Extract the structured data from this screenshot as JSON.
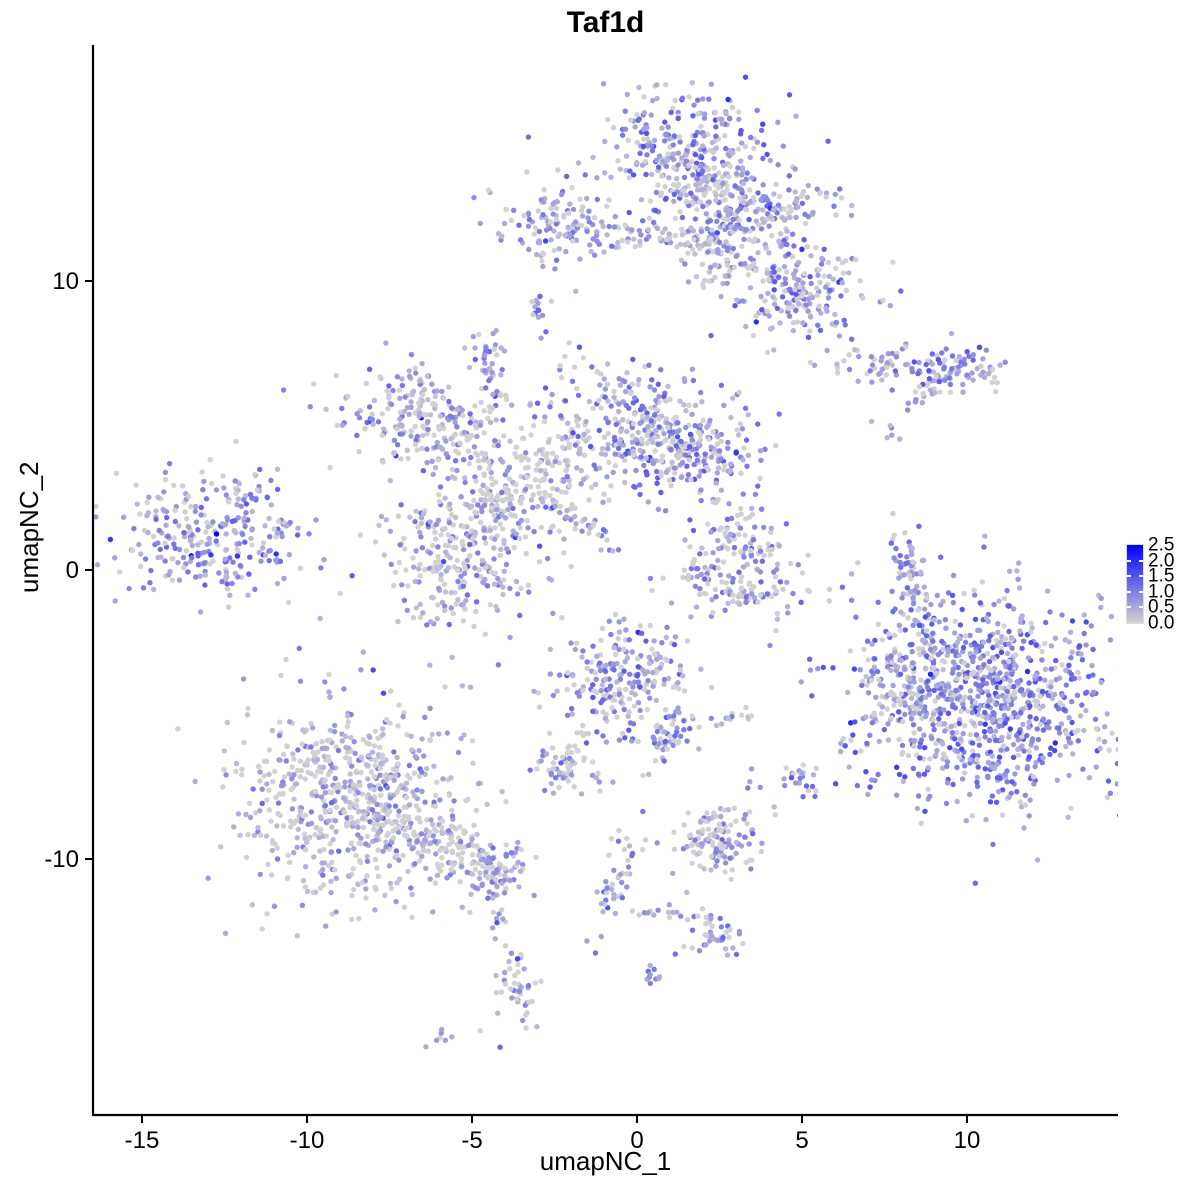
{
  "title": "Taf1d",
  "axes": {
    "x": {
      "label": "umapNC_1",
      "ticks": [
        "-15",
        "-10",
        "-5",
        "0",
        "5",
        "10"
      ]
    },
    "y": {
      "label": "umapNC_2",
      "ticks": [
        "10",
        "0",
        "-10"
      ]
    }
  },
  "legend": {
    "labels": [
      "2.5",
      "2.0",
      "1.5",
      "1.0",
      "0.5",
      "0.0"
    ],
    "label_values": [
      2.5,
      2.0,
      1.5,
      1.0,
      0.5,
      0.0
    ],
    "bar_tick_values": [
      0.5,
      1.0,
      1.5,
      2.0
    ],
    "low_color": "#D3D3D3",
    "high_color": "#0000FF",
    "vmin": 0.0,
    "vmax": 2.5
  },
  "colors": {
    "background": "#FFFFFF",
    "axis_line": "#000000",
    "text": "#000000",
    "point_low": "#D3D3D3",
    "point_high": "#0000FF"
  },
  "chart_data": {
    "type": "scatter",
    "title": "Taf1d",
    "xlabel": "umapNC_1",
    "ylabel": "umapNC_2",
    "xlim": [
      -16.5,
      14.6
    ],
    "ylim": [
      -18.5,
      18.2
    ],
    "x_ticks": [
      -15,
      -10,
      -5,
      0,
      5,
      10
    ],
    "y_ticks": [
      10,
      0,
      -10
    ],
    "grid": false,
    "legend_position": "right",
    "color_scale": {
      "low": "#D3D3D3",
      "high": "#0000FF",
      "domain": [
        0,
        2.5
      ]
    },
    "point_radius_px": 2.7,
    "seed": 1337,
    "clusters": [
      {
        "id": "top-main-core",
        "cx": 1.6,
        "cy": 14.3,
        "sx": 1.15,
        "sy": 1.05,
        "rot": -20,
        "n": 330,
        "grey": 0.22,
        "vlo": 0.3,
        "vhi": 1.6
      },
      {
        "id": "top-main-lower",
        "cx": 2.7,
        "cy": 12.3,
        "sx": 0.85,
        "sy": 0.8,
        "rot": 0,
        "n": 150,
        "grey": 0.38,
        "vlo": 0.2,
        "vhi": 1.3
      },
      {
        "id": "top-arm",
        "cx": 4.7,
        "cy": 12.6,
        "sx": 1.3,
        "sy": 0.38,
        "rot": 10,
        "n": 80,
        "grey": 0.3,
        "vlo": 0.3,
        "vhi": 1.4
      },
      {
        "id": "top-right-blob",
        "cx": 4.9,
        "cy": 9.7,
        "sx": 1.05,
        "sy": 0.85,
        "rot": -15,
        "n": 200,
        "grey": 0.3,
        "vlo": 0.3,
        "vhi": 1.5
      },
      {
        "id": "top-strand",
        "cx": 2.9,
        "cy": 10.3,
        "sx": 0.65,
        "sy": 0.22,
        "rot": 15,
        "n": 25,
        "grey": 0.35,
        "vlo": 0.2,
        "vhi": 1.0
      },
      {
        "id": "top-neck",
        "cx": 2.3,
        "cy": 11.2,
        "sx": 0.5,
        "sy": 0.6,
        "rot": 0,
        "n": 50,
        "grey": 0.5,
        "vlo": 0.2,
        "vhi": 1.0
      },
      {
        "id": "topleft-band",
        "cx": -2.4,
        "cy": 11.9,
        "sx": 1.0,
        "sy": 0.55,
        "rot": -12,
        "n": 120,
        "grey": 0.3,
        "vlo": 0.3,
        "vhi": 1.4
      },
      {
        "id": "topleft-strand",
        "cx": -0.2,
        "cy": 11.7,
        "sx": 1.3,
        "sy": 0.28,
        "rot": -8,
        "n": 55,
        "grey": 0.35,
        "vlo": 0.2,
        "vhi": 1.2
      },
      {
        "id": "topleft-dots",
        "cx": -2.9,
        "cy": 10.6,
        "sx": 0.15,
        "sy": 0.3,
        "rot": 0,
        "n": 4,
        "grey": 0.4,
        "vlo": 0.4,
        "vhi": 1.0
      },
      {
        "id": "blob-mid-top",
        "cx": -2.9,
        "cy": 8.9,
        "sx": 0.22,
        "sy": 0.45,
        "rot": 25,
        "n": 14,
        "grey": 0.25,
        "vlo": 0.4,
        "vhi": 1.3
      },
      {
        "id": "right-band-left",
        "cx": 7.3,
        "cy": 7.0,
        "sx": 0.85,
        "sy": 0.28,
        "rot": -5,
        "n": 50,
        "grey": 0.4,
        "vlo": 0.2,
        "vhi": 1.0
      },
      {
        "id": "right-band-right",
        "cx": 9.4,
        "cy": 7.0,
        "sx": 0.75,
        "sy": 0.42,
        "rot": 0,
        "n": 85,
        "grey": 0.22,
        "vlo": 0.4,
        "vhi": 1.6
      },
      {
        "id": "right-band-strand",
        "cx": 8.75,
        "cy": 6.0,
        "sx": 0.4,
        "sy": 0.16,
        "rot": 35,
        "n": 12,
        "grey": 0.3,
        "vlo": 0.3,
        "vhi": 1.2
      },
      {
        "id": "right-dots",
        "cx": 7.6,
        "cy": 4.85,
        "sx": 0.28,
        "sy": 0.2,
        "rot": 0,
        "n": 6,
        "grey": 0.4,
        "vlo": 0.3,
        "vhi": 1.0
      },
      {
        "id": "lone-dot-left",
        "cx": -10.7,
        "cy": 6.2,
        "sx": 0.03,
        "sy": 0.03,
        "rot": 0,
        "n": 1,
        "grey": 0,
        "vlo": 0.9,
        "vhi": 1.0
      },
      {
        "id": "mid-left-lobe",
        "cx": -6.5,
        "cy": 5.3,
        "sx": 1.25,
        "sy": 0.95,
        "rot": -15,
        "n": 200,
        "grey": 0.33,
        "vlo": 0.2,
        "vhi": 1.3,
        "outliers": [
          2.3
        ]
      },
      {
        "id": "mid-left-tail",
        "cx": -4.9,
        "cy": 4.3,
        "sx": 0.9,
        "sy": 0.3,
        "rot": -25,
        "n": 50,
        "grey": 0.45,
        "vlo": 0.2,
        "vhi": 1.1
      },
      {
        "id": "mid-up-strand",
        "cx": -4.4,
        "cy": 6.6,
        "sx": 0.25,
        "sy": 0.8,
        "rot": 10,
        "n": 30,
        "grey": 0.35,
        "vlo": 0.3,
        "vhi": 1.2
      },
      {
        "id": "mid-up-tip",
        "cx": -4.5,
        "cy": 7.7,
        "sx": 0.3,
        "sy": 0.35,
        "rot": 0,
        "n": 18,
        "grey": 0.25,
        "vlo": 0.4,
        "vhi": 1.3
      },
      {
        "id": "mid-right-lobe",
        "cx": 0.0,
        "cy": 4.9,
        "sx": 1.5,
        "sy": 1.05,
        "rot": -12,
        "n": 340,
        "grey": 0.3,
        "vlo": 0.25,
        "vhi": 1.5
      },
      {
        "id": "mid-right-ext",
        "cx": 2.0,
        "cy": 4.0,
        "sx": 0.85,
        "sy": 0.75,
        "rot": 0,
        "n": 130,
        "grey": 0.3,
        "vlo": 0.3,
        "vhi": 1.5
      },
      {
        "id": "mid-bridge",
        "cx": -2.9,
        "cy": 3.2,
        "sx": 1.05,
        "sy": 0.9,
        "rot": -30,
        "n": 130,
        "grey": 0.55,
        "vlo": 0.2,
        "vhi": 1.1
      },
      {
        "id": "mid-bottom-lobe",
        "cx": -5.3,
        "cy": 0.6,
        "sx": 1.15,
        "sy": 1.15,
        "rot": 0,
        "n": 280,
        "grey": 0.42,
        "vlo": 0.2,
        "vhi": 1.2
      },
      {
        "id": "mid-diag-strand",
        "cx": -1.6,
        "cy": 1.5,
        "sx": 0.85,
        "sy": 0.16,
        "rot": -38,
        "n": 30,
        "grey": 0.35,
        "vlo": 0.3,
        "vhi": 1.2
      },
      {
        "id": "mid-neck",
        "cx": -4.3,
        "cy": 2.2,
        "sx": 0.5,
        "sy": 0.5,
        "rot": 0,
        "n": 60,
        "grey": 0.5,
        "vlo": 0.2,
        "vhi": 1.0
      },
      {
        "id": "left-core",
        "cx": -13.1,
        "cy": 1.2,
        "sx": 1.5,
        "sy": 0.95,
        "rot": -8,
        "n": 260,
        "grey": 0.25,
        "vlo": 0.3,
        "vhi": 1.4,
        "outliers": [
          2.5,
          2.45,
          1.9
        ]
      },
      {
        "id": "left-arm-up",
        "cx": -11.7,
        "cy": 2.7,
        "sx": 0.5,
        "sy": 0.3,
        "rot": -30,
        "n": 25,
        "grey": 0.3,
        "vlo": 0.3,
        "vhi": 1.2
      },
      {
        "id": "left-arm-right",
        "cx": -10.9,
        "cy": 1.5,
        "sx": 0.3,
        "sy": 0.2,
        "rot": 0,
        "n": 10,
        "grey": 0.3,
        "vlo": 0.3,
        "vhi": 1.0
      },
      {
        "id": "c13-top",
        "cx": 3.2,
        "cy": 0.9,
        "sx": 0.75,
        "sy": 0.6,
        "rot": 0,
        "n": 90,
        "grey": 0.45,
        "vlo": 0.3,
        "vhi": 1.4
      },
      {
        "id": "c13-crescent",
        "cx": 3.3,
        "cy": -0.7,
        "sx": 1.2,
        "sy": 0.42,
        "rot": -8,
        "n": 95,
        "grey": 0.45,
        "vlo": 0.3,
        "vhi": 1.3
      },
      {
        "id": "c13-tip",
        "cx": 2.0,
        "cy": -0.2,
        "sx": 0.3,
        "sy": 0.22,
        "rot": -30,
        "n": 15,
        "grey": 0.3,
        "vlo": 0.4,
        "vhi": 1.3
      },
      {
        "id": "arc-strand",
        "cx": 8.2,
        "cy": 0.1,
        "sx": 0.22,
        "sy": 1.05,
        "rot": 12,
        "n": 55,
        "grey": 0.3,
        "vlo": 0.3,
        "vhi": 1.3
      },
      {
        "id": "arc-dots",
        "cx": 8.2,
        "cy": -2.0,
        "sx": 0.15,
        "sy": 0.35,
        "rot": 0,
        "n": 4,
        "grey": 0.5,
        "vlo": 0.3,
        "vhi": 0.9
      },
      {
        "id": "right-core",
        "cx": 10.3,
        "cy": -4.6,
        "sx": 2.0,
        "sy": 1.75,
        "rot": -20,
        "n": 1000,
        "grey": 0.18,
        "vlo": 0.35,
        "vhi": 1.6
      },
      {
        "id": "right-west-notch",
        "cx": 7.9,
        "cy": -4.3,
        "sx": 0.5,
        "sy": 0.8,
        "rot": 0,
        "n": 60,
        "grey": 0.55,
        "vlo": 0.2,
        "vhi": 0.9
      },
      {
        "id": "right-trail",
        "cx": 8.6,
        "cy": -2.6,
        "sx": 0.45,
        "sy": 0.8,
        "rot": -25,
        "n": 18,
        "grey": 0.45,
        "vlo": 0.2,
        "vhi": 1.2
      },
      {
        "id": "c9-core",
        "cx": -0.4,
        "cy": -3.8,
        "sx": 1.0,
        "sy": 1.1,
        "rot": 10,
        "n": 230,
        "grey": 0.35,
        "vlo": 0.3,
        "vhi": 1.5
      },
      {
        "id": "c9-arm",
        "cx": 1.0,
        "cy": -5.7,
        "sx": 0.45,
        "sy": 0.6,
        "rot": -35,
        "n": 45,
        "grey": 0.4,
        "vlo": 0.3,
        "vhi": 1.4
      },
      {
        "id": "c9-trail",
        "cx": -1.8,
        "cy": -5.8,
        "sx": 0.35,
        "sy": 0.55,
        "rot": 30,
        "n": 18,
        "grey": 0.75,
        "vlo": 0.2,
        "vhi": 0.8
      },
      {
        "id": "c10-blob",
        "cx": -2.3,
        "cy": -7.0,
        "sx": 0.5,
        "sy": 0.35,
        "rot": -10,
        "n": 45,
        "grey": 0.35,
        "vlo": 0.3,
        "vhi": 1.2
      },
      {
        "id": "c10-dots",
        "cx": -1.0,
        "cy": -7.3,
        "sx": 0.3,
        "sy": 0.15,
        "rot": 0,
        "n": 5,
        "grey": 0.5,
        "vlo": 0.3,
        "vhi": 0.9
      },
      {
        "id": "c17-strand",
        "cx": 2.9,
        "cy": -5.1,
        "sx": 0.42,
        "sy": 0.15,
        "rot": 5,
        "n": 13,
        "grey": 0.45,
        "vlo": 0.3,
        "vhi": 1.1
      },
      {
        "id": "pair-dots",
        "cx": 3.4,
        "cy": -7.5,
        "sx": 0.12,
        "sy": 0.3,
        "rot": 0,
        "n": 4,
        "grey": 0.2,
        "vlo": 0.5,
        "vhi": 1.2
      },
      {
        "id": "c16-blob",
        "cx": 5.0,
        "cy": -7.3,
        "sx": 0.3,
        "sy": 0.35,
        "rot": 0,
        "n": 22,
        "grey": 0.3,
        "vlo": 0.4,
        "vhi": 1.4
      },
      {
        "id": "lone-grey-dot",
        "cx": 4.2,
        "cy": -2.1,
        "sx": 0.03,
        "sy": 0.03,
        "rot": 0,
        "n": 1,
        "grey": 1,
        "vlo": 0,
        "vhi": 0
      },
      {
        "id": "bl-core",
        "cx": -8.6,
        "cy": -7.9,
        "sx": 1.7,
        "sy": 1.8,
        "rot": 0,
        "n": 680,
        "grey": 0.45,
        "vlo": 0.2,
        "vhi": 1.1
      },
      {
        "id": "bl-tail",
        "cx": -5.6,
        "cy": -9.6,
        "sx": 1.1,
        "sy": 0.45,
        "rot": -28,
        "n": 130,
        "grey": 0.5,
        "vlo": 0.2,
        "vhi": 1.0
      },
      {
        "id": "bl-tail-end",
        "cx": -4.3,
        "cy": -10.4,
        "sx": 0.45,
        "sy": 0.5,
        "rot": -20,
        "n": 60,
        "grey": 0.35,
        "vlo": 0.3,
        "vhi": 1.2
      },
      {
        "id": "bl-drip",
        "cx": -4.1,
        "cy": -11.8,
        "sx": 0.12,
        "sy": 0.8,
        "rot": -8,
        "n": 9,
        "grey": 0.4,
        "vlo": 0.3,
        "vhi": 1.0
      },
      {
        "id": "bl-bottom-blob",
        "cx": -3.6,
        "cy": -14.4,
        "sx": 0.3,
        "sy": 0.85,
        "rot": 8,
        "n": 45,
        "grey": 0.45,
        "vlo": 0.3,
        "vhi": 1.1
      },
      {
        "id": "bl-lone",
        "cx": -4.8,
        "cy": -15.9,
        "sx": 0.05,
        "sy": 0.05,
        "rot": 0,
        "n": 1,
        "grey": 1,
        "vlo": 0,
        "vhi": 0
      },
      {
        "id": "bl-bottom-small",
        "cx": -6.0,
        "cy": -16.2,
        "sx": 0.3,
        "sy": 0.12,
        "rot": 35,
        "n": 7,
        "grey": 0.3,
        "vlo": 0.4,
        "vhi": 1.0
      },
      {
        "id": "bc-strand",
        "cx": -0.55,
        "cy": -10.6,
        "sx": 0.22,
        "sy": 1.1,
        "rot": -18,
        "n": 45,
        "grey": 0.4,
        "vlo": 0.3,
        "vhi": 1.5
      },
      {
        "id": "bc-horiz",
        "cx": 1.0,
        "cy": -11.9,
        "sx": 0.8,
        "sy": 0.16,
        "rot": -5,
        "n": 18,
        "grey": 0.6,
        "vlo": 0.2,
        "vhi": 0.9
      },
      {
        "id": "bc-right-blob",
        "cx": 2.45,
        "cy": -12.6,
        "sx": 0.5,
        "sy": 0.38,
        "rot": -20,
        "n": 40,
        "grey": 0.45,
        "vlo": 0.3,
        "vhi": 1.3
      },
      {
        "id": "bc-small-blob",
        "cx": 0.55,
        "cy": -14.1,
        "sx": 0.18,
        "sy": 0.22,
        "rot": 0,
        "n": 10,
        "grey": 0.3,
        "vlo": 0.4,
        "vhi": 1.2
      },
      {
        "id": "c15a",
        "cx": 2.4,
        "cy": -9.4,
        "sx": 0.75,
        "sy": 0.65,
        "rot": -10,
        "n": 120,
        "grey": 0.45,
        "vlo": 0.25,
        "vhi": 1.3
      }
    ]
  }
}
